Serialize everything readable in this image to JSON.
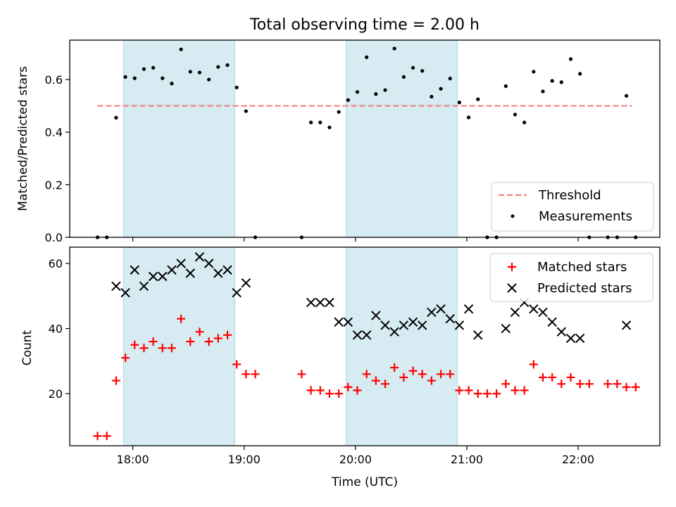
{
  "chart_data": [
    {
      "type": "scatter",
      "title": "Total observing time = 2.00 h",
      "xlabel": "",
      "ylabel": "Matched/Predicted stars",
      "xlim": [
        "17:26",
        "22:44"
      ],
      "ylim": [
        0,
        0.75
      ],
      "yticks": [
        0.0,
        0.2,
        0.4,
        0.6
      ],
      "shaded_intervals": [
        [
          "17:55",
          "18:55"
        ],
        [
          "19:55",
          "20:55"
        ]
      ],
      "threshold": {
        "name": "Threshold",
        "y": 0.5,
        "x_range": [
          "17:41",
          "22:29"
        ],
        "color": "#f08080",
        "style": "dashed"
      },
      "legend_position": "lower right",
      "series": [
        {
          "name": "Measurements",
          "color": "#000000",
          "marker": "dot",
          "points": [
            [
              "17:41",
              0.0
            ],
            [
              "17:46",
              0.0
            ],
            [
              "17:51",
              0.455
            ],
            [
              "17:56",
              0.61
            ],
            [
              "18:01",
              0.605
            ],
            [
              "18:06",
              0.64
            ],
            [
              "18:11",
              0.645
            ],
            [
              "18:16",
              0.605
            ],
            [
              "18:21",
              0.585
            ],
            [
              "18:26",
              0.715
            ],
            [
              "18:31",
              0.63
            ],
            [
              "18:36",
              0.627
            ],
            [
              "18:41",
              0.6
            ],
            [
              "18:46",
              0.648
            ],
            [
              "18:51",
              0.655
            ],
            [
              "18:56",
              0.57
            ],
            [
              "19:01",
              0.48
            ],
            [
              "19:06",
              0.0
            ],
            [
              "19:31",
              0.0
            ],
            [
              "19:36",
              0.437
            ],
            [
              "19:41",
              0.437
            ],
            [
              "19:46",
              0.418
            ],
            [
              "19:51",
              0.477
            ],
            [
              "19:56",
              0.522
            ],
            [
              "20:01",
              0.553
            ],
            [
              "20:06",
              0.685
            ],
            [
              "20:11",
              0.545
            ],
            [
              "20:16",
              0.56
            ],
            [
              "20:21",
              0.718
            ],
            [
              "20:26",
              0.61
            ],
            [
              "20:31",
              0.645
            ],
            [
              "20:36",
              0.633
            ],
            [
              "20:41",
              0.535
            ],
            [
              "20:46",
              0.565
            ],
            [
              "20:51",
              0.604
            ],
            [
              "20:56",
              0.513
            ],
            [
              "21:01",
              0.456
            ],
            [
              "21:06",
              0.525
            ],
            [
              "21:11",
              0.0
            ],
            [
              "21:16",
              0.0
            ],
            [
              "21:21",
              0.575
            ],
            [
              "21:26",
              0.467
            ],
            [
              "21:31",
              0.437
            ],
            [
              "21:36",
              0.63
            ],
            [
              "21:41",
              0.555
            ],
            [
              "21:46",
              0.595
            ],
            [
              "21:51",
              0.59
            ],
            [
              "21:56",
              0.678
            ],
            [
              "22:01",
              0.622
            ],
            [
              "22:06",
              0.0
            ],
            [
              "22:16",
              0.0
            ],
            [
              "22:21",
              0.0
            ],
            [
              "22:26",
              0.538
            ],
            [
              "22:31",
              0.0
            ]
          ]
        }
      ]
    },
    {
      "type": "scatter",
      "title": "",
      "xlabel": "Time (UTC)",
      "ylabel": "Count",
      "xlim": [
        "17:26",
        "22:44"
      ],
      "xticks": [
        "18:00",
        "19:00",
        "20:00",
        "21:00",
        "22:00"
      ],
      "ylim": [
        4,
        65
      ],
      "yticks": [
        20,
        40,
        60
      ],
      "shaded_intervals": [
        [
          "17:55",
          "18:55"
        ],
        [
          "19:55",
          "20:55"
        ]
      ],
      "legend_position": "upper right",
      "series": [
        {
          "name": "Matched stars",
          "color": "#ff0000",
          "marker": "plus",
          "points": [
            [
              "17:41",
              7
            ],
            [
              "17:46",
              7
            ],
            [
              "17:51",
              24
            ],
            [
              "17:56",
              31
            ],
            [
              "18:01",
              35
            ],
            [
              "18:06",
              34
            ],
            [
              "18:11",
              36
            ],
            [
              "18:16",
              34
            ],
            [
              "18:21",
              34
            ],
            [
              "18:26",
              43
            ],
            [
              "18:31",
              36
            ],
            [
              "18:36",
              39
            ],
            [
              "18:41",
              36
            ],
            [
              "18:46",
              37
            ],
            [
              "18:51",
              38
            ],
            [
              "18:56",
              29
            ],
            [
              "19:01",
              26
            ],
            [
              "19:06",
              26
            ],
            [
              "19:31",
              26
            ],
            [
              "19:36",
              21
            ],
            [
              "19:41",
              21
            ],
            [
              "19:46",
              20
            ],
            [
              "19:51",
              20
            ],
            [
              "19:56",
              22
            ],
            [
              "20:01",
              21
            ],
            [
              "20:06",
              26
            ],
            [
              "20:11",
              24
            ],
            [
              "20:16",
              23
            ],
            [
              "20:21",
              28
            ],
            [
              "20:26",
              25
            ],
            [
              "20:31",
              27
            ],
            [
              "20:36",
              26
            ],
            [
              "20:41",
              24
            ],
            [
              "20:46",
              26
            ],
            [
              "20:51",
              26
            ],
            [
              "20:56",
              21
            ],
            [
              "21:01",
              21
            ],
            [
              "21:06",
              20
            ],
            [
              "21:11",
              20
            ],
            [
              "21:16",
              20
            ],
            [
              "21:21",
              23
            ],
            [
              "21:26",
              21
            ],
            [
              "21:31",
              21
            ],
            [
              "21:36",
              29
            ],
            [
              "21:41",
              25
            ],
            [
              "21:46",
              25
            ],
            [
              "21:51",
              23
            ],
            [
              "21:56",
              25
            ],
            [
              "22:01",
              23
            ],
            [
              "22:06",
              23
            ],
            [
              "22:16",
              23
            ],
            [
              "22:21",
              23
            ],
            [
              "22:26",
              22
            ],
            [
              "22:31",
              22
            ]
          ]
        },
        {
          "name": "Predicted stars",
          "color": "#000000",
          "marker": "x",
          "points": [
            [
              "17:51",
              53
            ],
            [
              "17:56",
              51
            ],
            [
              "18:01",
              58
            ],
            [
              "18:06",
              53
            ],
            [
              "18:11",
              56
            ],
            [
              "18:16",
              56
            ],
            [
              "18:21",
              58
            ],
            [
              "18:26",
              60
            ],
            [
              "18:31",
              57
            ],
            [
              "18:36",
              62
            ],
            [
              "18:41",
              60
            ],
            [
              "18:46",
              57
            ],
            [
              "18:51",
              58
            ],
            [
              "18:56",
              51
            ],
            [
              "19:01",
              54
            ],
            [
              "19:36",
              48
            ],
            [
              "19:41",
              48
            ],
            [
              "19:46",
              48
            ],
            [
              "19:51",
              42
            ],
            [
              "19:56",
              42
            ],
            [
              "20:01",
              38
            ],
            [
              "20:06",
              38
            ],
            [
              "20:11",
              44
            ],
            [
              "20:16",
              41
            ],
            [
              "20:21",
              39
            ],
            [
              "20:26",
              41
            ],
            [
              "20:31",
              42
            ],
            [
              "20:36",
              41
            ],
            [
              "20:41",
              45
            ],
            [
              "20:46",
              46
            ],
            [
              "20:51",
              43
            ],
            [
              "20:56",
              41
            ],
            [
              "21:01",
              46
            ],
            [
              "21:06",
              38
            ],
            [
              "21:21",
              40
            ],
            [
              "21:26",
              45
            ],
            [
              "21:31",
              48
            ],
            [
              "21:36",
              46
            ],
            [
              "21:41",
              45
            ],
            [
              "21:46",
              42
            ],
            [
              "21:51",
              39
            ],
            [
              "21:56",
              37
            ],
            [
              "22:01",
              37
            ],
            [
              "22:26",
              41
            ]
          ]
        }
      ]
    }
  ]
}
